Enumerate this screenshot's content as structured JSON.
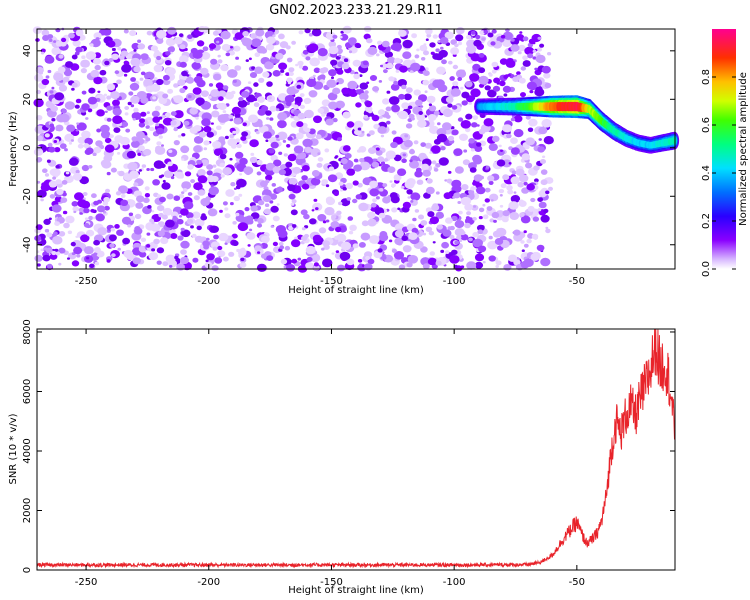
{
  "title": "GN02.2023.233.21.29.R11",
  "colors": {
    "snr_line": "#e8232a",
    "colormap": [
      "#ffffff",
      "#e8d0ff",
      "#c080ff",
      "#8a00ff",
      "#3a00ff",
      "#0040ff",
      "#00c8ff",
      "#00ff60",
      "#c8ff00",
      "#ffd000",
      "#ff4000",
      "#ff0080"
    ]
  },
  "chart_data": [
    {
      "type": "heatmap",
      "title": "",
      "xlabel": "Height of straight line (km)",
      "ylabel": "Frequency (Hz)",
      "xlim": [
        -270,
        -10
      ],
      "ylim": [
        -50,
        49
      ],
      "xticks": [
        "-250",
        "-200",
        "-150",
        "-100",
        "-50"
      ],
      "yticks": [
        "40",
        "20",
        "0",
        "-20",
        "-40"
      ],
      "noise_region_x": [
        -270,
        -62
      ],
      "noise_amplitude_range": [
        0.0,
        0.1
      ],
      "signal_track": {
        "x": [
          -90,
          -80,
          -75,
          -70,
          -60,
          -50,
          -45,
          -40,
          -35,
          -30,
          -25,
          -20,
          -15,
          -10
        ],
        "y": [
          17,
          17,
          17,
          17,
          17,
          17,
          16,
          11,
          7,
          4,
          2,
          1,
          2,
          3
        ],
        "amplitude": [
          0.35,
          0.45,
          0.5,
          0.6,
          0.85,
          0.95,
          0.7,
          0.6,
          0.5,
          0.45,
          0.4,
          0.4,
          0.45,
          0.5
        ]
      },
      "colorbar": {
        "label": "Normalized spectral amplitude",
        "range": [
          0.0,
          1.0
        ],
        "ticks": [
          "0.0",
          "0.2",
          "0.4",
          "0.6",
          "0.8"
        ]
      }
    },
    {
      "type": "line",
      "title": "",
      "xlabel": "Height of straight line (km)",
      "ylabel": "SNR (10 * v/v)",
      "xlim": [
        -270,
        -10
      ],
      "ylim": [
        0,
        8100
      ],
      "xticks": [
        "-250",
        "-200",
        "-150",
        "-100",
        "-50"
      ],
      "yticks": [
        "8000",
        "6000",
        "4000",
        "2000",
        "0"
      ],
      "series": [
        {
          "x": [
            -270,
            -250,
            -200,
            -150,
            -100,
            -70,
            -65,
            -60,
            -55,
            -52,
            -50,
            -48,
            -46,
            -44,
            -42,
            -40,
            -38,
            -36,
            -34,
            -32,
            -30,
            -28,
            -26,
            -24,
            -22,
            -20,
            -18,
            -16,
            -14,
            -12,
            -10
          ],
          "values": [
            170,
            170,
            170,
            170,
            170,
            180,
            250,
            500,
            1100,
            1400,
            1600,
            1200,
            900,
            1000,
            1200,
            1600,
            2500,
            4000,
            5000,
            4600,
            5200,
            5500,
            5200,
            5800,
            6200,
            6700,
            7600,
            6800,
            7000,
            6200,
            4500
          ]
        }
      ]
    }
  ]
}
